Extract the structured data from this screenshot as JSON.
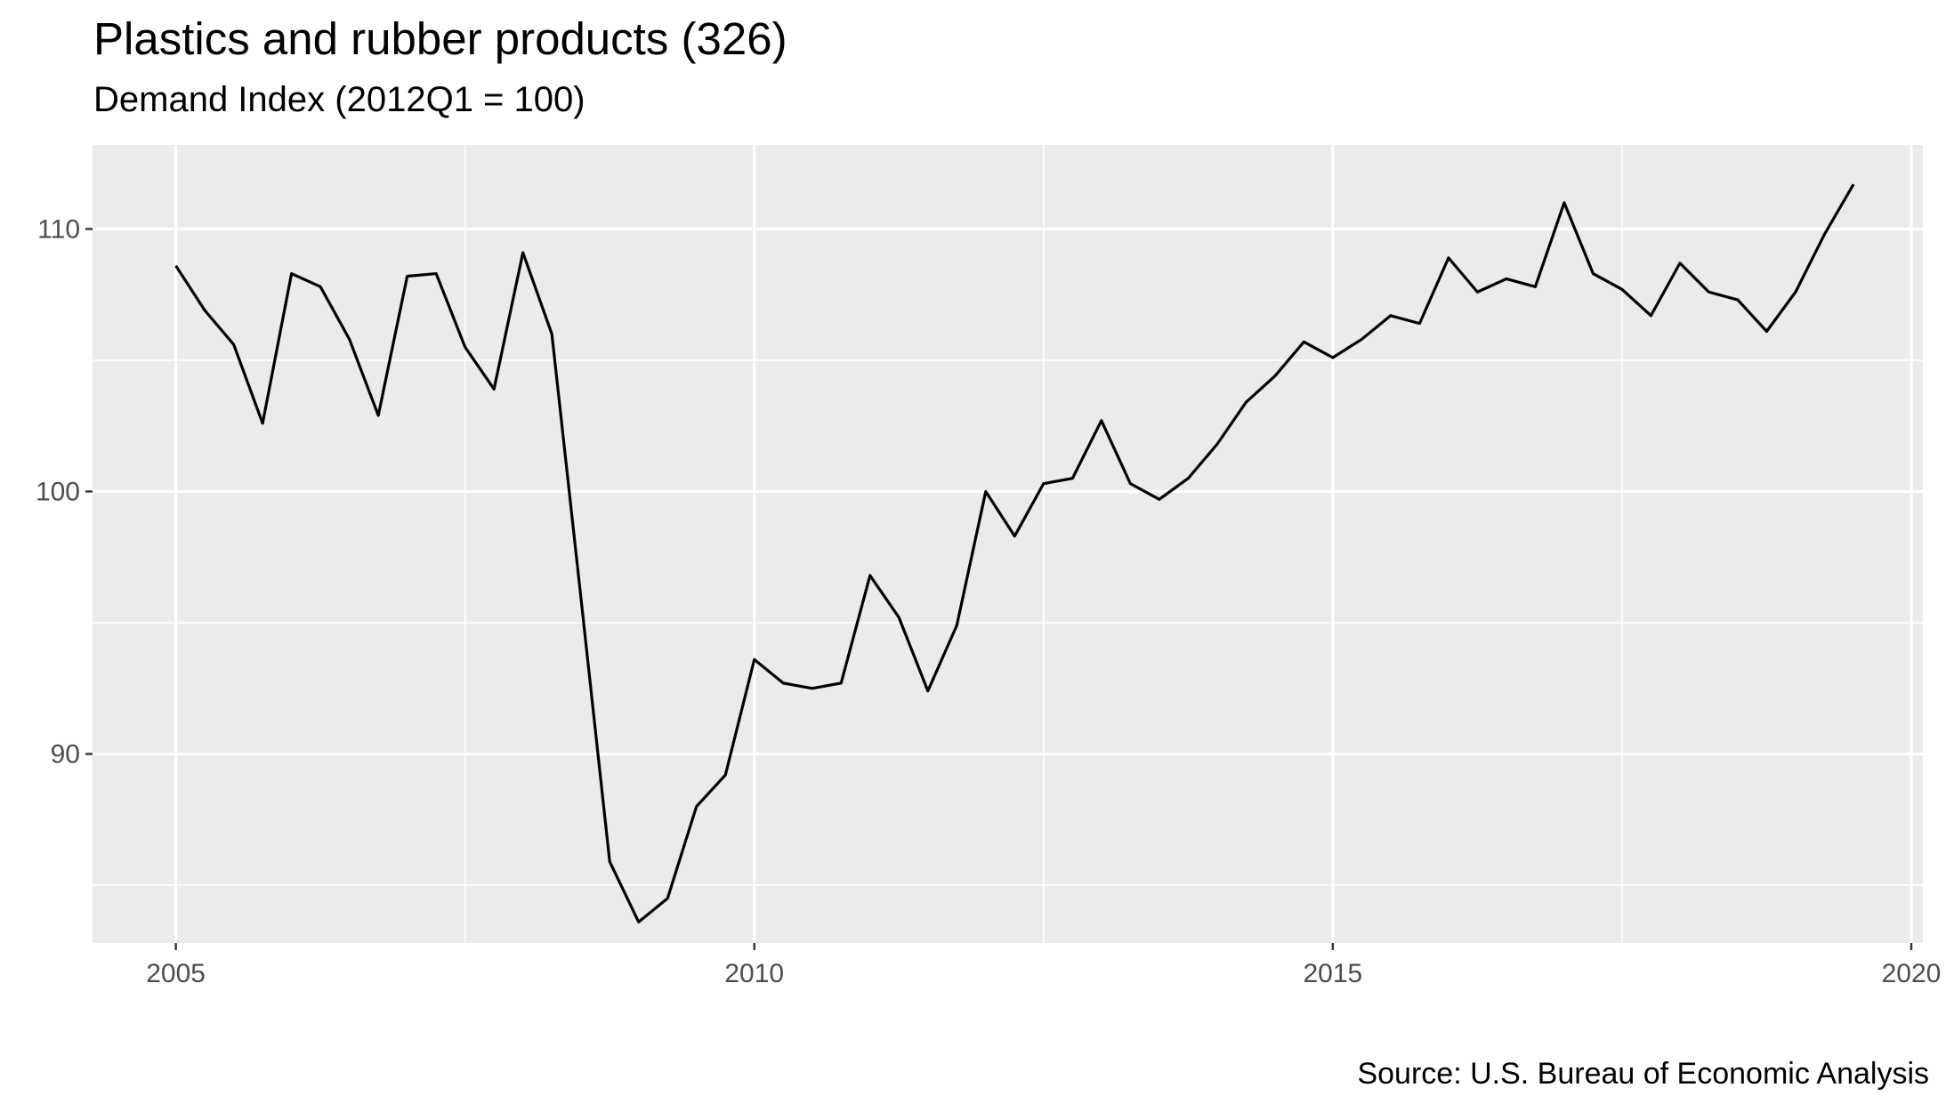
{
  "chart_data": {
    "type": "line",
    "title": "Plastics and rubber products (326)",
    "subtitle": "Demand Index (2012Q1 = 100)",
    "caption": "Source: U.S. Bureau of Economic Analysis",
    "xlabel": "",
    "ylabel": "",
    "xlim": [
      2004.28,
      2020.1
    ],
    "ylim": [
      82.8,
      113.2
    ],
    "x_ticks": [
      2005,
      2010,
      2015,
      2020
    ],
    "x_tick_labels": [
      "2005",
      "2010",
      "2015",
      "2020"
    ],
    "y_ticks": [
      90,
      100,
      110
    ],
    "y_tick_labels": [
      "90",
      "100",
      "110"
    ],
    "grid": true,
    "legend": "none",
    "colors": {
      "panel": "#EBEBEB",
      "grid": "#FFFFFF",
      "line": "#000000",
      "tick_text": "#4D4D4D"
    },
    "series": [
      {
        "x": [
          "2005-Q1",
          "2005-Q2",
          "2005-Q3",
          "2005-Q4",
          "2006-Q1",
          "2006-Q2",
          "2006-Q3",
          "2006-Q4",
          "2007-Q1",
          "2007-Q2",
          "2007-Q3",
          "2007-Q4",
          "2008-Q1",
          "2008-Q2",
          "2008-Q3",
          "2008-Q4",
          "2009-Q1",
          "2009-Q2",
          "2009-Q3",
          "2009-Q4",
          "2010-Q1",
          "2010-Q2",
          "2010-Q3",
          "2010-Q4",
          "2011-Q1",
          "2011-Q2",
          "2011-Q3",
          "2011-Q4",
          "2012-Q1",
          "2012-Q2",
          "2012-Q3",
          "2012-Q4",
          "2013-Q1",
          "2013-Q2",
          "2013-Q3",
          "2013-Q4",
          "2014-Q1",
          "2014-Q2",
          "2014-Q3",
          "2014-Q4",
          "2015-Q1",
          "2015-Q2",
          "2015-Q3",
          "2015-Q4",
          "2016-Q1",
          "2016-Q2",
          "2016-Q3",
          "2016-Q4",
          "2017-Q1",
          "2017-Q2",
          "2017-Q3",
          "2017-Q4",
          "2018-Q1",
          "2018-Q2",
          "2018-Q3",
          "2018-Q4",
          "2019-Q1",
          "2019-Q2",
          "2019-Q3"
        ],
        "values": [
          108.6,
          106.9,
          105.6,
          102.6,
          108.3,
          107.8,
          105.8,
          102.9,
          108.2,
          108.3,
          105.5,
          103.9,
          109.1,
          106.0,
          96.0,
          85.9,
          83.6,
          84.5,
          88.0,
          89.2,
          93.6,
          92.7,
          92.5,
          92.7,
          96.8,
          95.2,
          92.4,
          94.9,
          100.0,
          98.3,
          100.3,
          100.5,
          102.7,
          100.3,
          99.7,
          100.5,
          101.8,
          103.4,
          104.4,
          105.7,
          105.1,
          105.8,
          106.7,
          106.4,
          108.9,
          107.6,
          108.1,
          107.8,
          111.0,
          108.3,
          107.7,
          106.7,
          108.7,
          107.6,
          107.3,
          106.1,
          107.6,
          109.8,
          111.7
        ]
      }
    ]
  }
}
